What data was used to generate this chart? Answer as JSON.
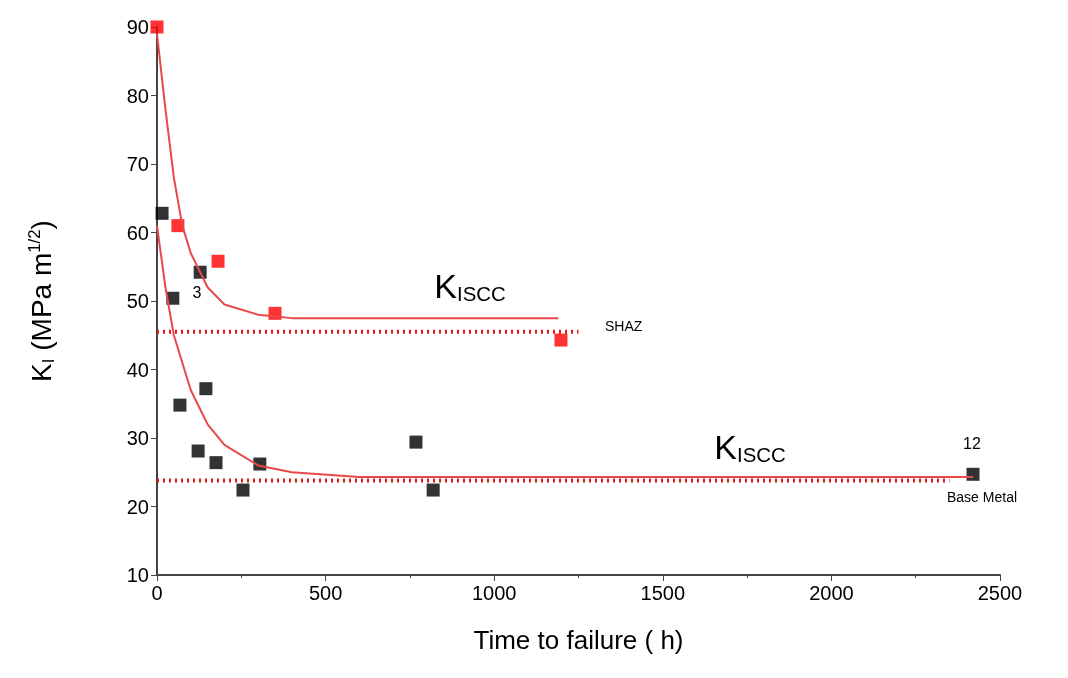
{
  "chart_data": {
    "type": "scatter",
    "xlabel": "Time to failure ( h)",
    "ylabel": "K$_{I}$ (MPa m$^{1/2}$)",
    "xlim": [
      0,
      2500
    ],
    "xticks": [
      0,
      500,
      1000,
      1500,
      2000,
      2500
    ],
    "ylim": [
      10,
      90
    ],
    "yticks": [
      10,
      20,
      30,
      40,
      50,
      60,
      70,
      80,
      90
    ],
    "grid": false,
    "marker": "square",
    "series": [
      {
        "type": "line",
        "color": "#e84a4a",
        "marker": "none",
        "line_style": "solid",
        "x": [
          0,
          25,
          50,
          75,
          100,
          150,
          200,
          300,
          400,
          1190
        ],
        "values": [
          89,
          78,
          68,
          61,
          57,
          52,
          49.5,
          48,
          47.5,
          47.5
        ]
      },
      {
        "type": "line",
        "color": "#e84a4a",
        "marker": "none",
        "line_style": "solid",
        "x": [
          0,
          25,
          50,
          100,
          150,
          200,
          300,
          400,
          600,
          2420
        ],
        "values": [
          61,
          52,
          45,
          37,
          32,
          29,
          26,
          25,
          24.3,
          24.3
        ]
      },
      {
        "type": "line",
        "color": "#e01818",
        "marker": "none",
        "line_style": "dotted",
        "x": [
          0,
          1250
        ],
        "values": [
          45.5,
          45.5
        ]
      },
      {
        "type": "line",
        "color": "#e01818",
        "marker": "none",
        "line_style": "dotted",
        "x": [
          0,
          2350
        ],
        "values": [
          23.8,
          23.8
        ]
      },
      {
        "color": "#ff0000",
        "x": [
          0,
          62,
          181,
          350,
          1198
        ],
        "values": [
          90,
          61,
          55.8,
          48.2,
          44.3
        ]
      },
      {
        "color": "#000000",
        "x": [
          15,
          47,
          128,
          68,
          145,
          122,
          175,
          255,
          305,
          768,
          819,
          2420
        ],
        "values": [
          62.8,
          50.4,
          54.2,
          34.8,
          37.2,
          28.1,
          26.4,
          22.4,
          26.2,
          29.4,
          22.4,
          24.7
        ]
      }
    ],
    "annotations": [
      "K$_{ISCC}$",
      "K$_{ISCC}$",
      "SHAZ",
      "Base Metal",
      "3",
      "12"
    ]
  }
}
